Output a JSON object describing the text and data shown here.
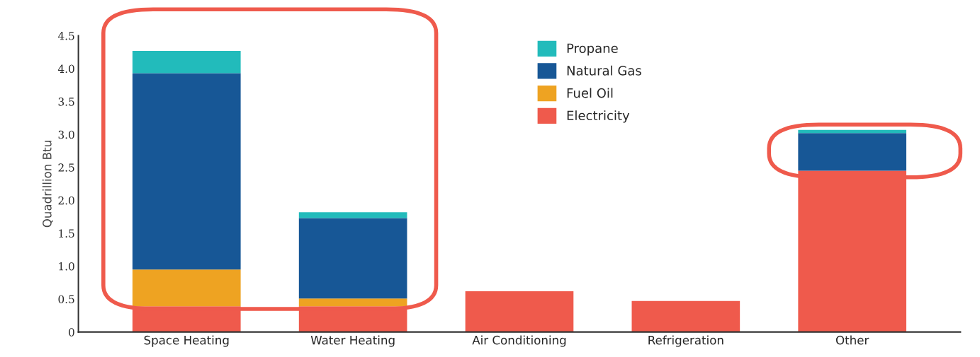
{
  "chart_data": {
    "type": "bar",
    "ylabel": "Quadrillion Btu",
    "stacked": true,
    "legend": "top",
    "grid": false,
    "categories": [
      "Space Heating",
      "Water Heating",
      "Air Conditioning",
      "Refrigeration",
      "Other"
    ],
    "series": [
      {
        "name": "Electricity",
        "color": "#ef5a4c",
        "values": [
          0.39,
          0.39,
          0.62,
          0.47,
          2.45
        ]
      },
      {
        "name": "Fuel Oil",
        "color": "#eea322",
        "values": [
          0.56,
          0.12,
          null,
          null,
          null
        ]
      },
      {
        "name": "Natural Gas",
        "color": "#175796",
        "values": [
          2.98,
          1.22,
          null,
          null,
          0.57
        ]
      },
      {
        "name": "Propane",
        "color": "#22bbbb",
        "values": [
          0.34,
          0.09,
          null,
          null,
          0.05
        ]
      }
    ],
    "ylim": [
      0,
      4.5
    ],
    "yticks": [
      0,
      0.5,
      {
        "value": 1,
        "label": "1.0"
      },
      1.5,
      {
        "value": 2,
        "label": "2.0"
      },
      2.5,
      {
        "value": 3,
        "label": "3.0"
      },
      3.5,
      {
        "value": 4,
        "label": "4.0"
      },
      4.5
    ]
  }
}
